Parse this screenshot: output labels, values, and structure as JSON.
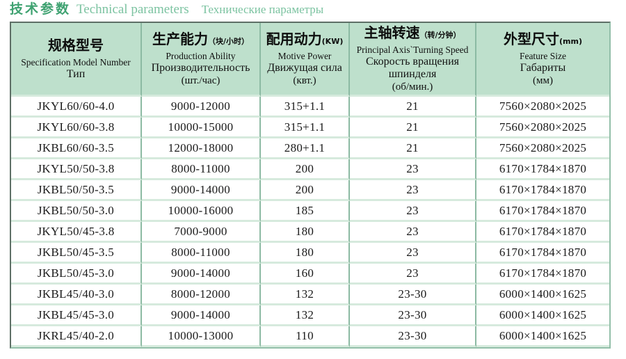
{
  "title": {
    "cn": "技术参数",
    "en": "Technical parameters",
    "ru": "Технические параметры"
  },
  "colors": {
    "title_cn_green": "#3fa271",
    "title_light_green": "#7cc3a1",
    "header_bg": "#bee0cc",
    "column_divider": "#8cbaa3",
    "row_divider": "#d6eadd",
    "outer_border_dark": "#5e6f66",
    "outer_border_green": "#93bfa9",
    "text": "#1a1a1a"
  },
  "table": {
    "headers": [
      {
        "cn": "规格型号",
        "cn_small": "",
        "en": "Specification Model Number",
        "ru": "Тип",
        "ru2": ""
      },
      {
        "cn": "生产能力",
        "cn_small": "（块/小时）",
        "en": "Production Ability",
        "ru": "Производительность",
        "ru2": "(шт./час)"
      },
      {
        "cn": "配用动力",
        "cn_small": "(KW)",
        "en": "Motive Power",
        "ru": "Движущая сила",
        "ru2": "(квт.)"
      },
      {
        "cn": "主轴转速",
        "cn_small": "（转/分钟）",
        "en": "Principal Axis`Turning Speed",
        "ru": "Скорость вращения шпинделя",
        "ru2": "(об/мин.)"
      },
      {
        "cn": "外型尺寸",
        "cn_small": "(mm)",
        "en": "Feature Size",
        "ru": "Габариты",
        "ru2": "(мм)"
      }
    ],
    "rows": [
      [
        "JKYL60/60-4.0",
        "9000-12000",
        "315+1.1",
        "21",
        "7560×2080×2025"
      ],
      [
        "JKYL60/60-3.8",
        "10000-15000",
        "315+1.1",
        "21",
        "7560×2080×2025"
      ],
      [
        "JKBL60/60-3.5",
        "12000-18000",
        "280+1.1",
        "21",
        "7560×2080×2025"
      ],
      [
        "JKYL50/50-3.8",
        "8000-11000",
        "200",
        "23",
        "6170×1784×1870"
      ],
      [
        "JKBL50/50-3.5",
        "9000-14000",
        "200",
        "23",
        "6170×1784×1870"
      ],
      [
        "JKBL50/50-3.0",
        "10000-16000",
        "185",
        "23",
        "6170×1784×1870"
      ],
      [
        "JKYL50/45-3.8",
        "7000-9000",
        "180",
        "23",
        "6170×1784×1870"
      ],
      [
        "JKBL50/45-3.5",
        "8000-11000",
        "180",
        "23",
        "6170×1784×1870"
      ],
      [
        "JKBL50/45-3.0",
        "9000-14000",
        "160",
        "23",
        "6170×1784×1870"
      ],
      [
        "JKBL45/40-3.0",
        "8000-12000",
        "132",
        "23-30",
        "6000×1400×1625"
      ],
      [
        "JKBL45/45-3.0",
        "9000-14000",
        "132",
        "23-30",
        "6000×1400×1625"
      ],
      [
        "JKRL45/40-2.0",
        "10000-13000",
        "110",
        "23-30",
        "6000×1400×1625"
      ]
    ]
  }
}
